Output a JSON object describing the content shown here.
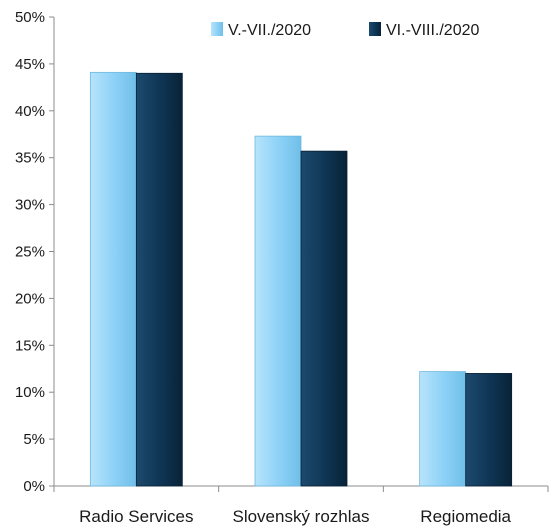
{
  "chart_data": {
    "type": "bar",
    "categories": [
      "Radio Services",
      "Slovenský rozhlas",
      "Regiomedia"
    ],
    "series": [
      {
        "name": "V.-VII./2020",
        "values": [
          44.1,
          37.3,
          12.2
        ],
        "color": "#8fd2f7"
      },
      {
        "name": "VI.-VIII./2020",
        "values": [
          44.0,
          35.7,
          12.0
        ],
        "color": "#0f3656"
      }
    ],
    "ylim": [
      0,
      50
    ],
    "yticks": [
      0,
      5,
      10,
      15,
      20,
      25,
      30,
      35,
      40,
      45,
      50
    ],
    "ytick_labels": [
      "0%",
      "5%",
      "10%",
      "15%",
      "20%",
      "25%",
      "30%",
      "35%",
      "40%",
      "45%",
      "50%"
    ],
    "grid": false,
    "legend_position": "top-right",
    "title": "",
    "xlabel": "",
    "ylabel": ""
  }
}
